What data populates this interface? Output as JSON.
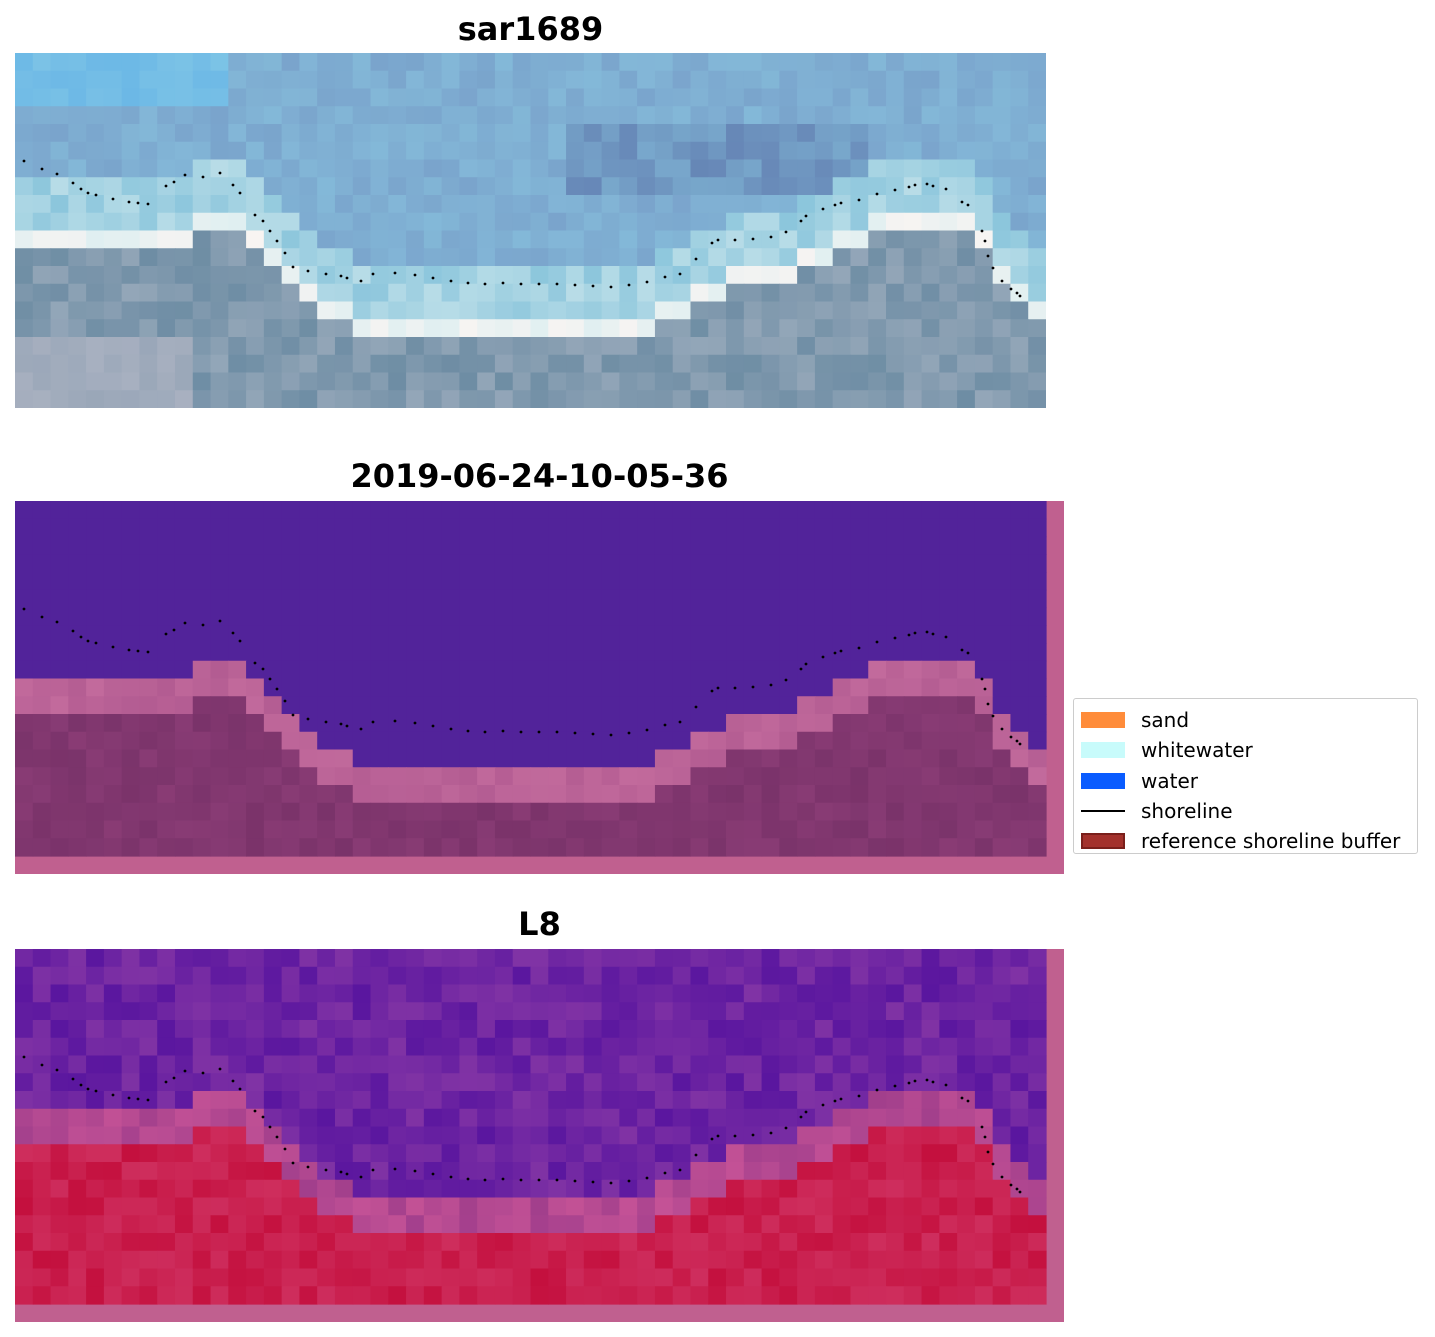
{
  "panels": [
    {
      "title": "sar1689",
      "kind": "rgb"
    },
    {
      "title": "2019-06-24-10-05-36",
      "kind": "classified"
    },
    {
      "title": "L8",
      "kind": "index"
    }
  ],
  "legend": {
    "items": [
      {
        "label": "sand",
        "type": "patch",
        "color": "#ff8c3a"
      },
      {
        "label": "whitewater",
        "type": "patch",
        "color": "#c8fbfb"
      },
      {
        "label": "water",
        "type": "patch",
        "color": "#0a5cff"
      },
      {
        "label": "shoreline",
        "type": "line",
        "color": "#000000"
      },
      {
        "label": "reference shoreline buffer",
        "type": "patch",
        "color": "#a3312c",
        "edge": "#7a1f1b"
      }
    ]
  },
  "colors": {
    "water_class": "#52239a",
    "buffer_overlay": "#c0608f",
    "land_class": "#7a336a",
    "index_low": "#5a169f",
    "index_high": "#c4103e",
    "shoreline_points": "#000000"
  }
}
